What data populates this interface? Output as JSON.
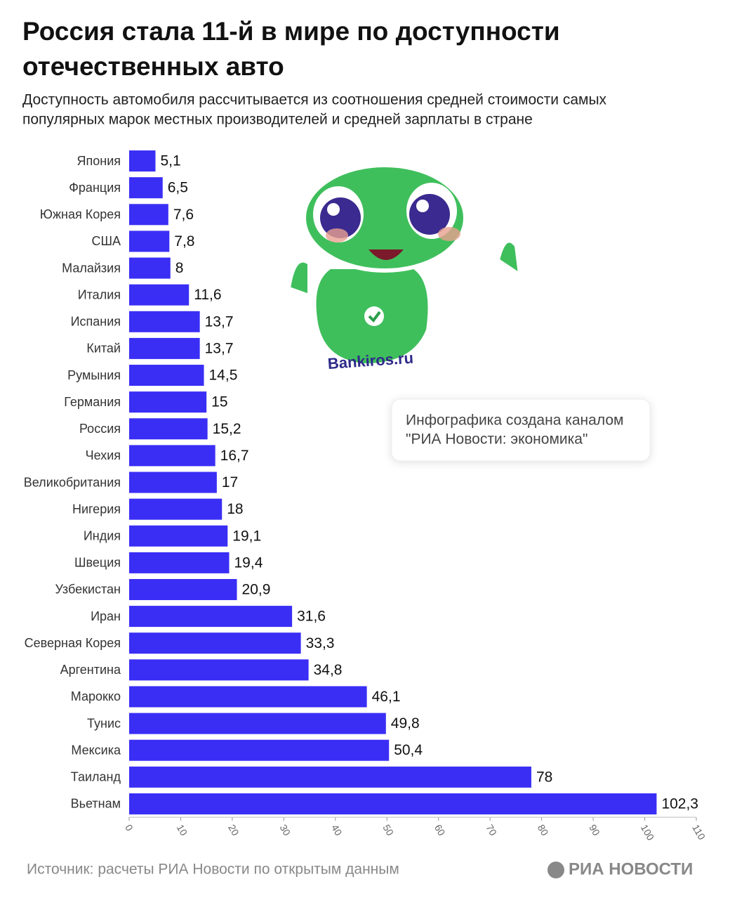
{
  "chart_data": {
    "type": "bar",
    "orientation": "horizontal",
    "title": [
      "Россия стала 11-й в мире по доступности",
      "отечественных авто"
    ],
    "subtitle": [
      "Доступность автомобиля рассчитывается из соотношения средней стоимости самых",
      "популярных марок местных производителей и средней зарплаты в стране"
    ],
    "categories": [
      "Япония",
      "Франция",
      "Южная Корея",
      "США",
      "Малайзия",
      "Италия",
      "Испания",
      "Китай",
      "Румыния",
      "Германия",
      "Россия",
      "Чехия",
      "Великобритания",
      "Нигерия",
      "Индия",
      "Швеция",
      "Узбекистан",
      "Иран",
      "Северная Корея",
      "Аргентина",
      "Марокко",
      "Тунис",
      "Мексика",
      "Таиланд",
      "Вьетнам"
    ],
    "values": [
      5.1,
      6.5,
      7.6,
      7.8,
      8,
      11.6,
      13.7,
      13.7,
      14.5,
      15,
      15.2,
      16.7,
      17,
      18,
      19.1,
      19.4,
      20.9,
      31.6,
      33.3,
      34.8,
      46.1,
      49.8,
      50.4,
      78,
      102.3
    ],
    "value_labels": [
      "5,1",
      "6,5",
      "7,6",
      "7,8",
      "8",
      "11,6",
      "13,7",
      "13,7",
      "14,5",
      "15",
      "15,2",
      "16,7",
      "17",
      "18",
      "19,1",
      "19,4",
      "20,9",
      "31,6",
      "33,3",
      "34,8",
      "46,1",
      "49,8",
      "50,4",
      "78",
      "102,3"
    ],
    "color": "#3a2ef5",
    "xlim": [
      0,
      110
    ],
    "xticks": [
      0,
      10,
      20,
      30,
      40,
      50,
      60,
      70,
      80,
      90,
      100,
      110
    ],
    "note": [
      "Инфографика создана каналом",
      "\"РИА Новости: экономика\""
    ],
    "watermark": "Bankiros.ru",
    "source": "Источник: расчеты РИА Новости по открытым данным",
    "logo": "РИА НОВОСТИ"
  }
}
